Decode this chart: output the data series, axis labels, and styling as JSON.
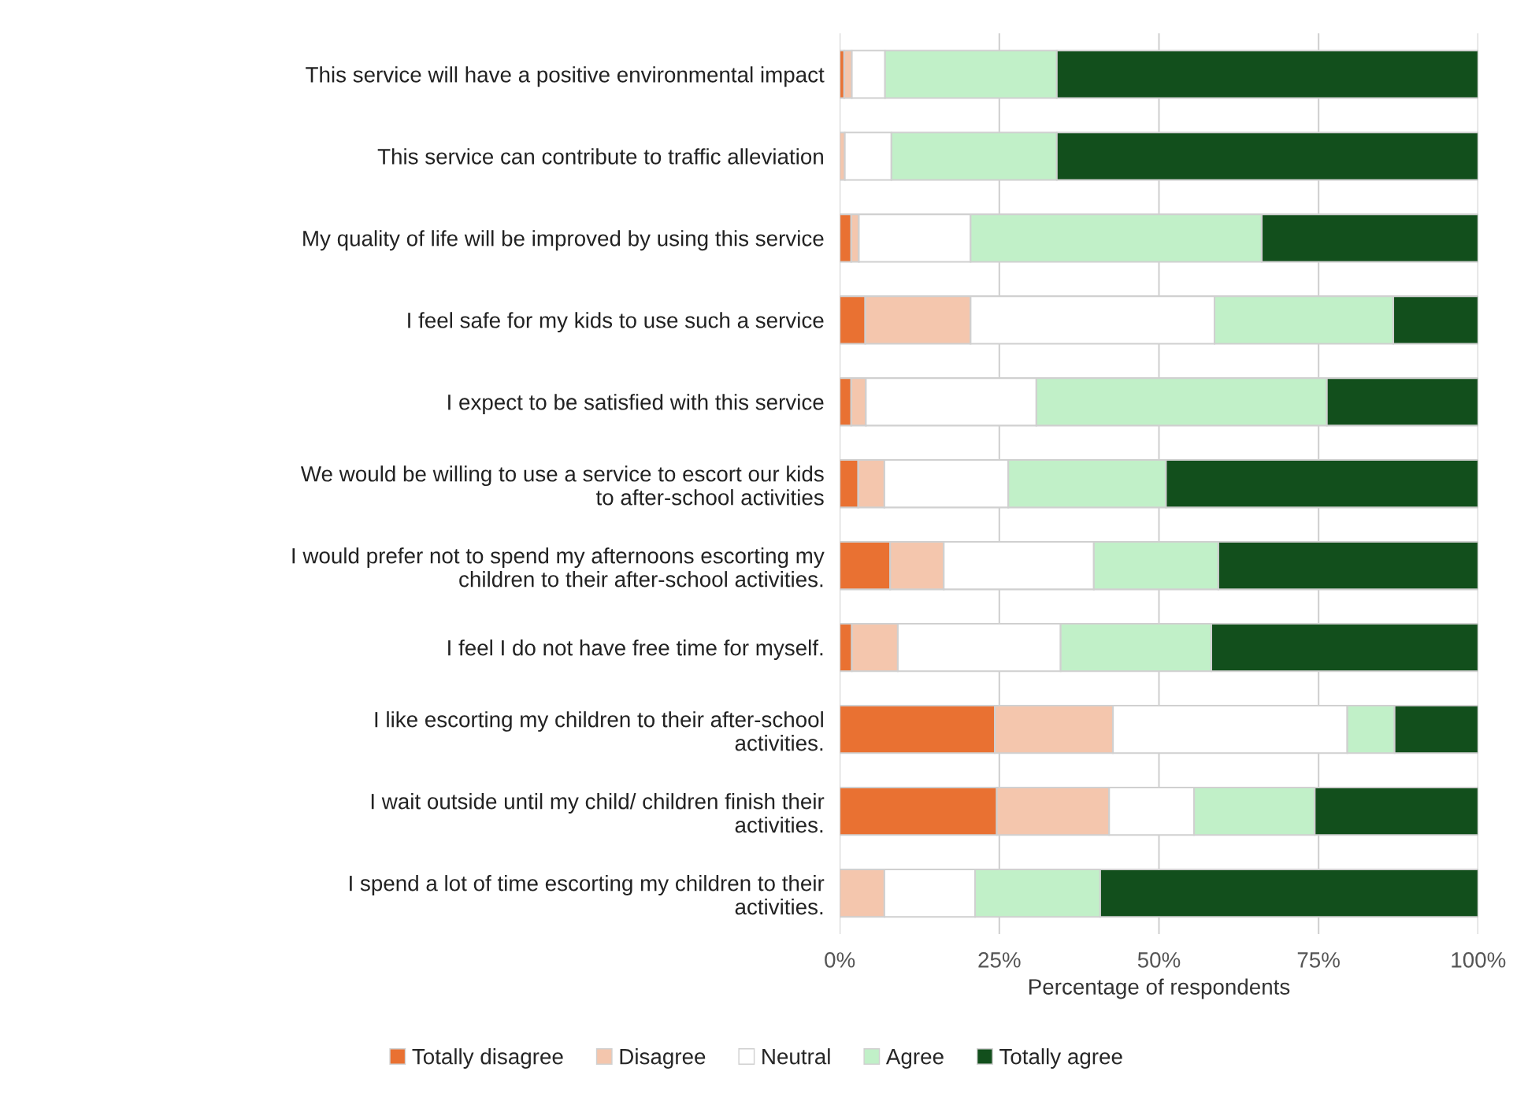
{
  "chart_data": {
    "type": "bar",
    "orientation": "horizontal",
    "stacked": true,
    "categories": [
      "This service will have a positive environmental impact",
      "This service can contribute to traffic alleviation",
      "My quality of life will be improved by using this service",
      "I feel safe for my kids to use such a service",
      "I expect to be satisfied with this service",
      "We would be willing to use a service to escort our kids\nto after-school activities",
      "I would prefer not to spend my afternoons escorting my\nchildren to their after-school activities.",
      "I feel I do not have free time for myself.",
      "I like escorting my children to their after-school\nactivities.",
      "I wait outside until my child/ children finish their\nactivities.",
      "I spend a lot of time escorting my children to their\nactivities."
    ],
    "series": [
      {
        "name": "Totally disagree",
        "color": "#e97132",
        "values": [
          0.7,
          0,
          1.8,
          4.0,
          1.8,
          2.9,
          7.9,
          1.9,
          24.3,
          24.6,
          0
        ]
      },
      {
        "name": "Disagree",
        "color": "#f4c6ad",
        "values": [
          1.2,
          0.8,
          1.2,
          16.5,
          2.3,
          4.1,
          8.4,
          7.2,
          18.5,
          17.6,
          7.0
        ]
      },
      {
        "name": "Neutral",
        "color": "#ffffff",
        "values": [
          5.2,
          7.3,
          17.5,
          38.2,
          26.7,
          19.4,
          23.5,
          25.5,
          36.7,
          13.3,
          14.2
        ]
      },
      {
        "name": "Agree",
        "color": "#c1f0c8",
        "values": [
          26.9,
          25.9,
          45.6,
          28.0,
          45.5,
          24.7,
          19.5,
          23.6,
          7.4,
          18.9,
          19.6
        ]
      },
      {
        "name": "Totally agree",
        "color": "#124f1c",
        "values": [
          66.0,
          66.0,
          33.9,
          13.3,
          23.7,
          48.9,
          40.7,
          41.8,
          13.1,
          25.6,
          59.2
        ]
      }
    ],
    "xlabel": "Percentage of respondents",
    "xlim": [
      0,
      100
    ],
    "xticks": [
      {
        "value": 0,
        "label": "0%"
      },
      {
        "value": 25,
        "label": "25%"
      },
      {
        "value": 50,
        "label": "50%"
      },
      {
        "value": 75,
        "label": "75%"
      },
      {
        "value": 100,
        "label": "100%"
      }
    ],
    "grid": "x",
    "legend": "bottom"
  }
}
